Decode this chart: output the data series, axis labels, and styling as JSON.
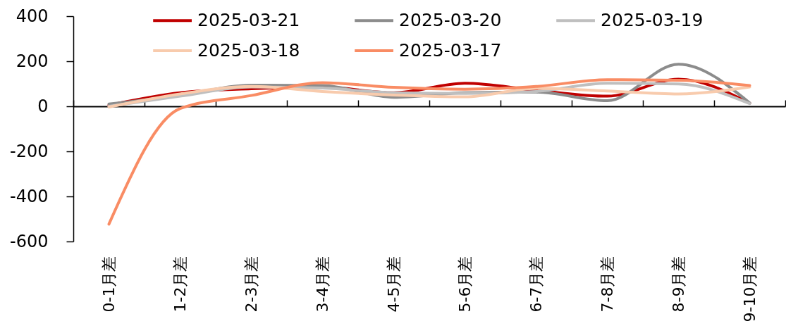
{
  "chart_data": {
    "type": "line",
    "categories": [
      "0-1月差",
      "1-2月差",
      "2-3月差",
      "3-4月差",
      "4-5月差",
      "5-6月差",
      "6-7月差",
      "7-8月差",
      "8-9月差",
      "9-10月差"
    ],
    "series": [
      {
        "name": "2025-03-21",
        "color": "#c00000",
        "values": [
          5,
          60,
          78,
          86,
          60,
          102,
          71,
          45,
          120,
          14
        ]
      },
      {
        "name": "2025-03-20",
        "color": "#8c8c8c",
        "values": [
          10,
          48,
          94,
          92,
          40,
          60,
          63,
          25,
          187,
          15
        ]
      },
      {
        "name": "2025-03-19",
        "color": "#bfbfbf",
        "values": [
          0,
          45,
          86,
          81,
          60,
          57,
          66,
          102,
          99,
          12
        ]
      },
      {
        "name": "2025-03-18",
        "color": "#f8cbad",
        "values": [
          -3,
          55,
          88,
          66,
          50,
          42,
          80,
          68,
          55,
          86
        ]
      },
      {
        "name": "2025-03-17",
        "color": "#f98c64",
        "values": [
          -523,
          -10,
          48,
          105,
          84,
          76,
          88,
          118,
          116,
          92
        ]
      }
    ],
    "ylim": [
      -600,
      400
    ],
    "yticks": [
      -600,
      -400,
      -200,
      0,
      200,
      400
    ],
    "legend": "top"
  }
}
